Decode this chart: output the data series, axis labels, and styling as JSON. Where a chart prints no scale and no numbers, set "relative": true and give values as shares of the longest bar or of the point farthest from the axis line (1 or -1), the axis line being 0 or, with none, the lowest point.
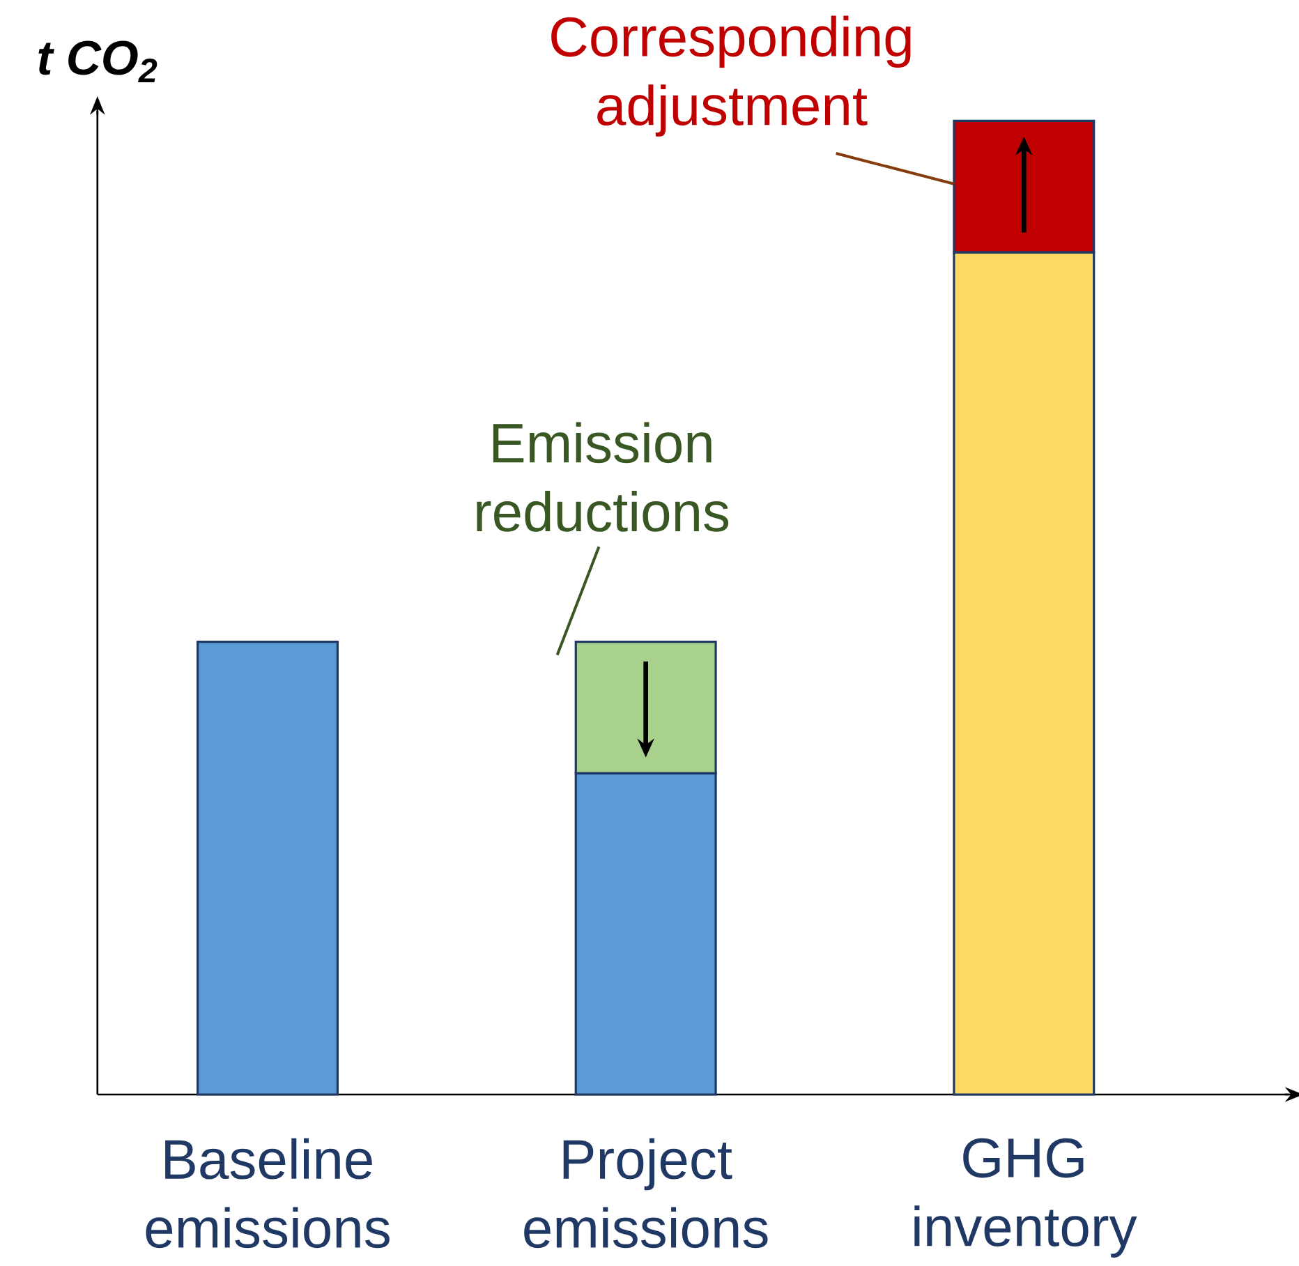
{
  "chart_data": {
    "type": "bar",
    "stacked": true,
    "relative": true,
    "ylabel": "t CO$_{2}$",
    "categories": [
      "Baseline emissions",
      "Project emissions",
      "GHG inventory"
    ],
    "series": [
      {
        "colors": [
          "#5b9bd5",
          "#5b9bd5",
          "#ffd966"
        ],
        "values": [
          0.465,
          0.33,
          0.865
        ]
      },
      {
        "colors": [
          "#a9d18e",
          "#a9d18e",
          "#c00000"
        ],
        "values": [
          null,
          0.135,
          0.135
        ]
      }
    ],
    "annotations": [
      "Emission reductions",
      "Corresponding adjustment"
    ]
  }
}
